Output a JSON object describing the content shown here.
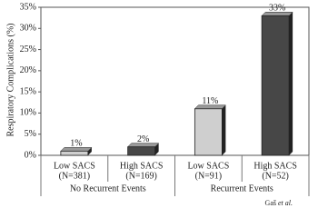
{
  "chart_data": {
    "type": "bar",
    "y_label": "Respiratory Complications (%)",
    "groups": [
      {
        "name": "No Recurrent Events",
        "categories": [
          [
            "Low SACS",
            "(N=381)"
          ],
          [
            "High SACS",
            "(N=169)"
          ]
        ],
        "values": [
          1,
          2
        ],
        "value_labels": [
          "1%",
          "2%"
        ],
        "colors": [
          "#cfcfcf",
          "#474747"
        ]
      },
      {
        "name": "Recurrent Events",
        "categories": [
          [
            "Low SACS",
            "(N=91)"
          ],
          [
            "High SACS",
            "(N=52)"
          ]
        ],
        "values": [
          11,
          33
        ],
        "value_labels": [
          "11%",
          "33%"
        ],
        "colors": [
          "#cfcfcf",
          "#474747"
        ]
      }
    ],
    "ylim": [
      0,
      35
    ],
    "yticks": [
      {
        "value": 0,
        "label": "0%"
      },
      {
        "value": 5,
        "label": "5%"
      },
      {
        "value": 10,
        "label": "10%"
      },
      {
        "value": 15,
        "label": "15%"
      },
      {
        "value": 20,
        "label": "20%"
      },
      {
        "value": 25,
        "label": "25%"
      },
      {
        "value": 30,
        "label": "30%"
      },
      {
        "value": 35,
        "label": "35%"
      }
    ],
    "source_author": "Gaš",
    "source_suffix": "et al."
  }
}
